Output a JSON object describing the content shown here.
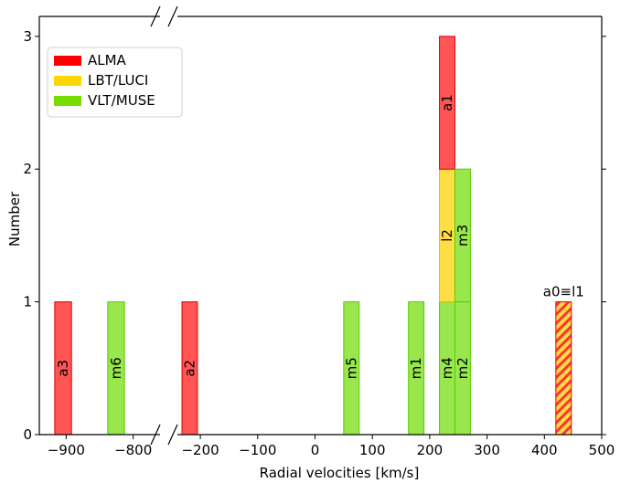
{
  "chart_data": {
    "type": "bar",
    "title": "",
    "xlabel": "Radial velocities [km/s]",
    "ylabel": "Number",
    "ylim": [
      0,
      3.15
    ],
    "x_segments": [
      {
        "range": [
          -940,
          -760
        ],
        "ticks": [
          -900,
          -800
        ],
        "tick_labels": [
          "−900",
          "−800"
        ]
      },
      {
        "range": [
          -240,
          500
        ],
        "ticks": [
          -200,
          -100,
          0,
          100,
          200,
          300,
          400,
          500
        ],
        "tick_labels": [
          "−200",
          "−100",
          "0",
          "100",
          "200",
          "300",
          "400",
          "500"
        ]
      }
    ],
    "y_ticks": [
      0,
      1,
      2,
      3
    ],
    "y_tick_labels": [
      "0",
      "1",
      "2",
      "3"
    ],
    "colors": {
      "ALMA": "#ff5555",
      "LBT/LUCI": "#ffdd44",
      "VLT/MUSE": "#99e64d"
    },
    "edge_colors": {
      "ALMA": "#dd0000",
      "LBT/LUCI": "#e6b800",
      "VLT/MUSE": "#55cc00"
    },
    "legend": [
      {
        "label": "ALMA",
        "color": "#ff0000"
      },
      {
        "label": "LBT/LUCI",
        "color": "#ffd700"
      },
      {
        "label": "VLT/MUSE",
        "color": "#77dd00"
      }
    ],
    "legend_position": "upper-left",
    "bars": [
      {
        "label": "a3",
        "instrument": "ALMA",
        "x0": -917,
        "x1": -892,
        "bottom": 0,
        "top": 1,
        "label_pos": 0.5
      },
      {
        "label": "m6",
        "instrument": "VLT/MUSE",
        "x0": -838,
        "x1": -813,
        "bottom": 0,
        "top": 1,
        "label_pos": 0.5
      },
      {
        "label": "a2",
        "instrument": "ALMA",
        "x0": -232,
        "x1": -205,
        "bottom": 0,
        "top": 1,
        "label_pos": 0.5
      },
      {
        "label": "m5",
        "instrument": "VLT/MUSE",
        "x0": 50,
        "x1": 77,
        "bottom": 0,
        "top": 1,
        "label_pos": 0.5
      },
      {
        "label": "m1",
        "instrument": "VLT/MUSE",
        "x0": 163,
        "x1": 190,
        "bottom": 0,
        "top": 1,
        "label_pos": 0.5
      },
      {
        "label": "m4",
        "instrument": "VLT/MUSE",
        "x0": 217,
        "x1": 244,
        "bottom": 0,
        "top": 1,
        "label_pos": 0.5
      },
      {
        "label": "l2",
        "instrument": "LBT/LUCI",
        "x0": 217,
        "x1": 244,
        "bottom": 1,
        "top": 2,
        "label_pos": 1.5
      },
      {
        "label": "a1",
        "instrument": "ALMA",
        "x0": 217,
        "x1": 244,
        "bottom": 2,
        "top": 3,
        "label_pos": 2.5
      },
      {
        "label": "m2",
        "instrument": "VLT/MUSE",
        "x0": 244,
        "x1": 271,
        "bottom": 0,
        "top": 1,
        "label_pos": 0.5
      },
      {
        "label": "m3",
        "instrument": "VLT/MUSE",
        "x0": 244,
        "x1": 271,
        "bottom": 1,
        "top": 2,
        "label_pos": 1.5
      }
    ],
    "hatched_bars": [
      {
        "label": "a0≡l1",
        "instruments": [
          "ALMA",
          "LBT/LUCI"
        ],
        "x0": 420,
        "x1": 447,
        "bottom": 0,
        "top": 1
      }
    ],
    "grid": false
  }
}
